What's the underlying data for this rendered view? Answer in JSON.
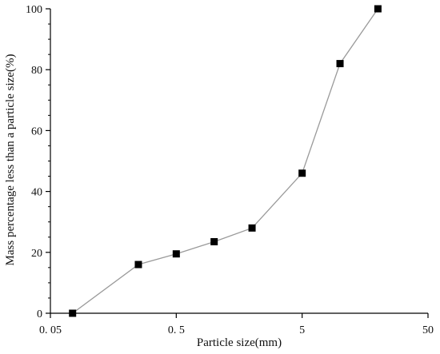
{
  "chart_data": {
    "type": "line",
    "xscale": "log",
    "xlabel": "Particle size(mm)",
    "ylabel": "Mass percentage less than a particle size(%)",
    "xlim": [
      0.05,
      50
    ],
    "ylim": [
      0,
      100
    ],
    "x_ticks": [
      {
        "value": 0.05,
        "label": "0. 05"
      },
      {
        "value": 0.5,
        "label": "0. 5"
      },
      {
        "value": 5,
        "label": "5"
      },
      {
        "value": 50,
        "label": "50"
      }
    ],
    "y_ticks": [
      {
        "value": 0,
        "label": "0"
      },
      {
        "value": 20,
        "label": "20"
      },
      {
        "value": 40,
        "label": "40"
      },
      {
        "value": 60,
        "label": "60"
      },
      {
        "value": 80,
        "label": "80"
      },
      {
        "value": 100,
        "label": "100"
      }
    ],
    "grid": false,
    "line_color": "#9a9a9a",
    "marker_color": "#000000",
    "marker": "square",
    "series": [
      {
        "x": [
          0.075,
          0.25,
          0.5,
          1.0,
          2.0,
          5.0,
          10.0,
          20.0
        ],
        "y": [
          0,
          16,
          19.5,
          23.5,
          28,
          46,
          82,
          100
        ]
      }
    ]
  }
}
